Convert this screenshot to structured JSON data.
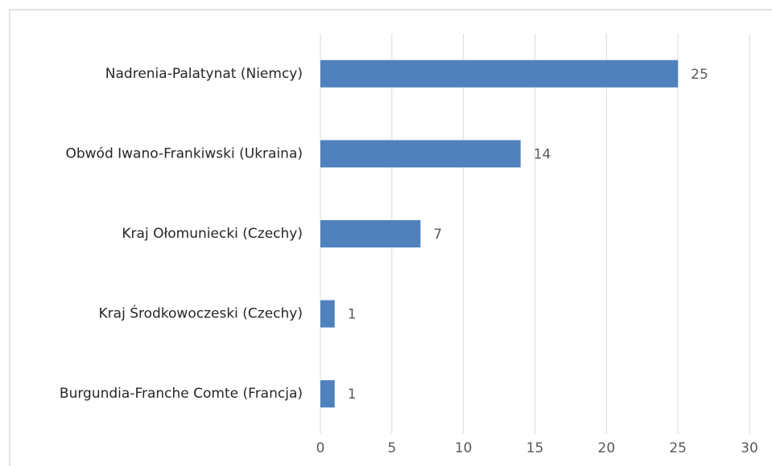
{
  "chart_data": {
    "type": "bar",
    "orientation": "horizontal",
    "categories": [
      "Nadrenia-Palatynat (Niemcy)",
      "Obwód Iwano-Frankiwski (Ukraina)",
      "Kraj Ołomuniecki (Czechy)",
      "Kraj Środkowoczeski (Czechy)",
      "Burgundia-Franche Comte (Francja)"
    ],
    "values": [
      25,
      14,
      7,
      1,
      1
    ],
    "color": "#4f81bd",
    "xlim": [
      0,
      30
    ],
    "xticks": [
      0,
      5,
      10,
      15,
      20,
      25,
      30
    ],
    "grid": true
  }
}
